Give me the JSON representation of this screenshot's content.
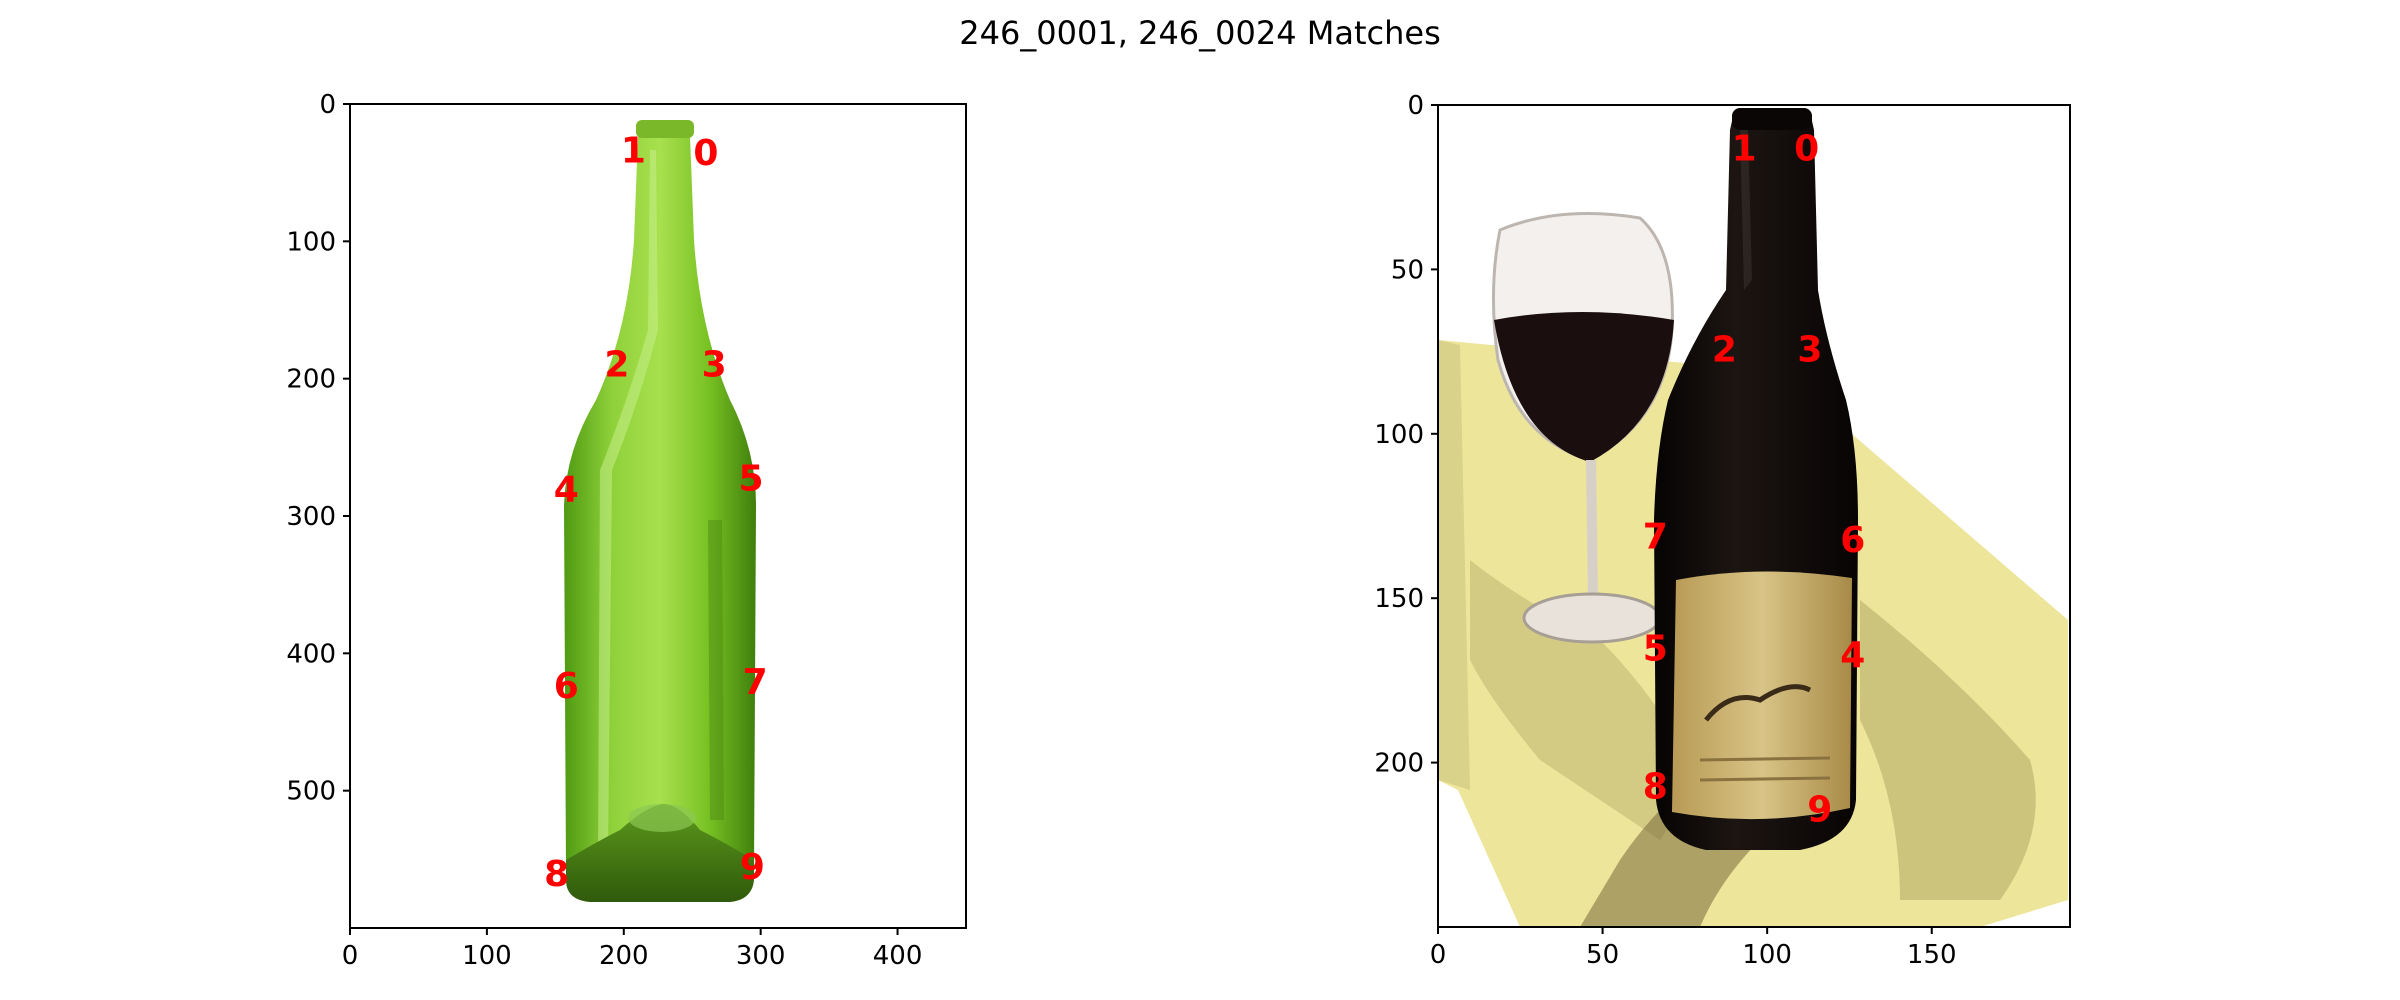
{
  "title": "246_0001, 246_0024 Matches",
  "colors": {
    "marker": "#ff0000",
    "left_bottle": "#6fbf1c",
    "right_bottle": "#120c0a",
    "right_table": "#ece59a",
    "right_label": "#c8b06a"
  },
  "chart_data": [
    {
      "type": "scatter",
      "name": "246_0001",
      "image": "green wine bottle",
      "xlim": [
        0,
        450
      ],
      "ylim": [
        600,
        0
      ],
      "xticks": [
        0,
        100,
        200,
        300,
        400
      ],
      "yticks": [
        0,
        100,
        200,
        300,
        400,
        500
      ],
      "points": [
        {
          "label": "0",
          "x": 260,
          "y": 35
        },
        {
          "label": "1",
          "x": 207,
          "y": 33
        },
        {
          "label": "2",
          "x": 195,
          "y": 189
        },
        {
          "label": "3",
          "x": 266,
          "y": 189
        },
        {
          "label": "4",
          "x": 158,
          "y": 280
        },
        {
          "label": "5",
          "x": 293,
          "y": 272
        },
        {
          "label": "6",
          "x": 158,
          "y": 423
        },
        {
          "label": "7",
          "x": 296,
          "y": 420
        },
        {
          "label": "8",
          "x": 151,
          "y": 560
        },
        {
          "label": "9",
          "x": 294,
          "y": 555
        }
      ]
    },
    {
      "type": "scatter",
      "name": "246_0024",
      "image": "dark wine bottle and glass on table",
      "xlim": [
        0,
        192
      ],
      "ylim": [
        250,
        0
      ],
      "xticks": [
        0,
        50,
        100,
        150
      ],
      "yticks": [
        0,
        50,
        100,
        150,
        200
      ],
      "points": [
        {
          "label": "0",
          "x": 112,
          "y": 13
        },
        {
          "label": "1",
          "x": 93,
          "y": 13
        },
        {
          "label": "2",
          "x": 87,
          "y": 74
        },
        {
          "label": "3",
          "x": 113,
          "y": 74
        },
        {
          "label": "4",
          "x": 126,
          "y": 167
        },
        {
          "label": "5",
          "x": 66,
          "y": 165
        },
        {
          "label": "6",
          "x": 126,
          "y": 132
        },
        {
          "label": "7",
          "x": 66,
          "y": 131
        },
        {
          "label": "8",
          "x": 66,
          "y": 207
        },
        {
          "label": "9",
          "x": 116,
          "y": 214
        }
      ]
    }
  ]
}
